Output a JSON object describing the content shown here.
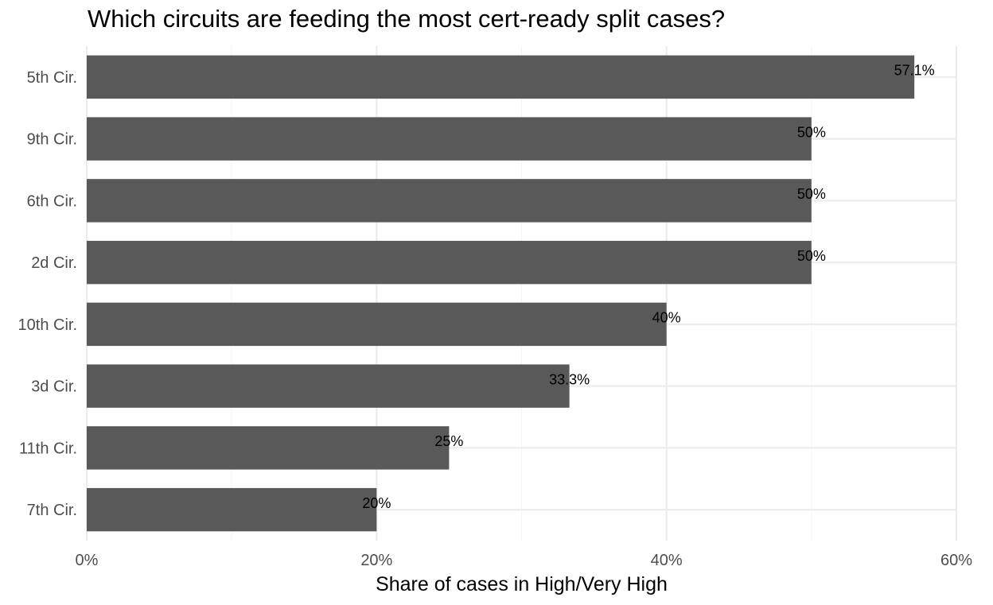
{
  "chart_data": {
    "type": "bar",
    "orientation": "horizontal",
    "title": "Which circuits are feeding the most cert-ready split cases?",
    "xlabel": "Share of cases in High/Very High",
    "ylabel": "",
    "categories": [
      "5th Cir.",
      "9th Cir.",
      "6th Cir.",
      "2d Cir.",
      "10th Cir.",
      "3d Cir.",
      "11th Cir.",
      "7th Cir."
    ],
    "values": [
      57.1,
      50,
      50,
      50,
      40,
      33.3,
      25,
      20
    ],
    "value_labels": [
      "57.1%",
      "50%",
      "50%",
      "50%",
      "40%",
      "33.3%",
      "25%",
      "20%"
    ],
    "xlim": [
      0,
      60
    ],
    "x_ticks": [
      0,
      20,
      40,
      60
    ],
    "x_tick_labels": [
      "0%",
      "20%",
      "40%",
      "60%"
    ],
    "grid": true,
    "legend": "none",
    "colors": {
      "bar": "#595959",
      "grid_major": "#ebebeb",
      "grid_minor": "#f5f5f5"
    }
  }
}
